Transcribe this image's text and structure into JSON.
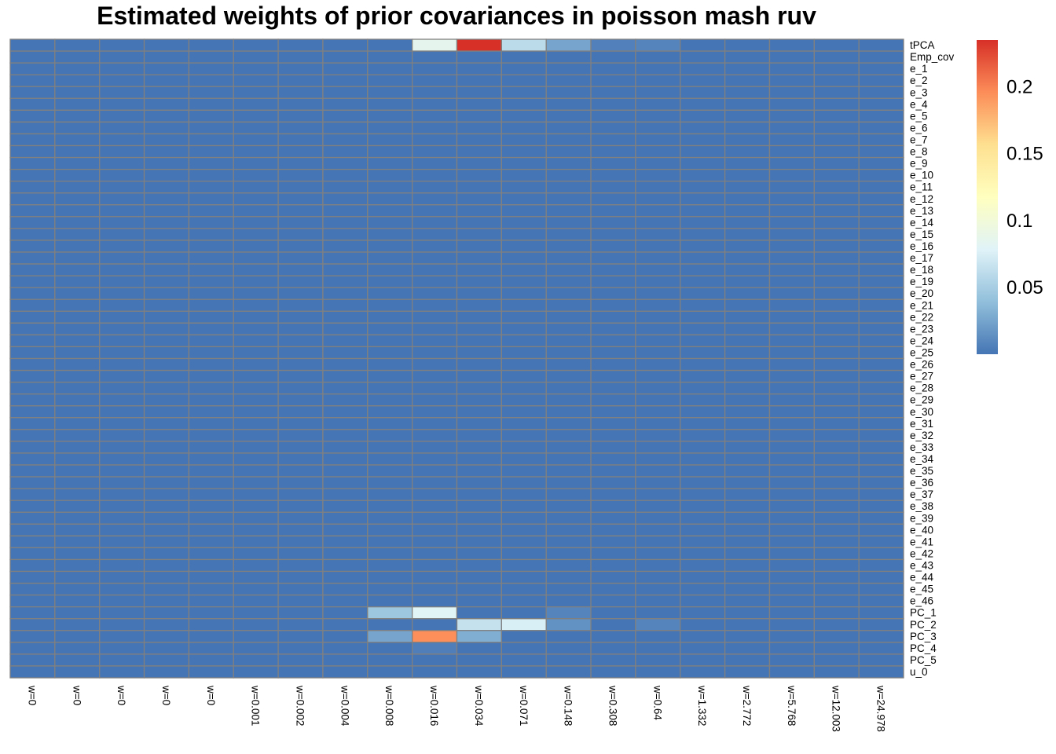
{
  "chart_data": {
    "type": "heatmap",
    "title": "Estimated weights of prior covariances in poisson mash ruv",
    "xlabel": "",
    "ylabel": "",
    "columns": [
      "w=0",
      "w=0",
      "w=0",
      "w=0",
      "w=0",
      "w=0.001",
      "w=0.002",
      "w=0.004",
      "w=0.008",
      "w=0.016",
      "w=0.034",
      "w=0.071",
      "w=0.148",
      "w=0.308",
      "w=0.64",
      "w=1.332",
      "w=2.772",
      "w=5.768",
      "w=12.003",
      "w=24.978"
    ],
    "rows": [
      "tPCA",
      "Emp_cov",
      "e_1",
      "e_2",
      "e_3",
      "e_4",
      "e_5",
      "e_6",
      "e_7",
      "e_8",
      "e_9",
      "e_10",
      "e_11",
      "e_12",
      "e_13",
      "e_14",
      "e_15",
      "e_16",
      "e_17",
      "e_18",
      "e_19",
      "e_20",
      "e_21",
      "e_22",
      "e_23",
      "e_24",
      "e_25",
      "e_26",
      "e_27",
      "e_28",
      "e_29",
      "e_30",
      "e_31",
      "e_32",
      "e_33",
      "e_34",
      "e_35",
      "e_36",
      "e_37",
      "e_38",
      "e_39",
      "e_40",
      "e_41",
      "e_42",
      "e_43",
      "e_44",
      "e_45",
      "e_46",
      "PC_1",
      "PC_2",
      "PC_3",
      "PC_4",
      "PC_5",
      "u_0"
    ],
    "default_value": 0,
    "nonzero_cells": [
      {
        "row": "tPCA",
        "col_index": 9,
        "value": 0.085
      },
      {
        "row": "tPCA",
        "col_index": 10,
        "value": 0.235
      },
      {
        "row": "tPCA",
        "col_index": 11,
        "value": 0.06
      },
      {
        "row": "tPCA",
        "col_index": 12,
        "value": 0.025
      },
      {
        "row": "tPCA",
        "col_index": 13,
        "value": 0.006
      },
      {
        "row": "tPCA",
        "col_index": 14,
        "value": 0.008
      },
      {
        "row": "PC_1",
        "col_index": 8,
        "value": 0.045
      },
      {
        "row": "PC_1",
        "col_index": 9,
        "value": 0.08
      },
      {
        "row": "PC_1",
        "col_index": 12,
        "value": 0.008
      },
      {
        "row": "PC_2",
        "col_index": 11,
        "value": 0.075
      },
      {
        "row": "PC_2",
        "col_index": 10,
        "value": 0.065
      },
      {
        "row": "PC_2",
        "col_index": 12,
        "value": 0.015
      },
      {
        "row": "PC_2",
        "col_index": 14,
        "value": 0.008
      },
      {
        "row": "PC_3",
        "col_index": 8,
        "value": 0.025
      },
      {
        "row": "PC_3",
        "col_index": 9,
        "value": 0.195
      },
      {
        "row": "PC_3",
        "col_index": 10,
        "value": 0.03
      },
      {
        "row": "PC_4",
        "col_index": 9,
        "value": 0.005
      }
    ],
    "color_scale": {
      "min": 0,
      "max": 0.235,
      "colors": [
        "#4575B4",
        "#91BFDB",
        "#E0F3F8",
        "#FFFFBF",
        "#FEE090",
        "#FC8D59",
        "#D73027"
      ],
      "ticks": [
        0.05,
        0.1,
        0.15,
        0.2
      ],
      "tick_labels": [
        "0.05",
        "0.1",
        "0.15",
        "0.2"
      ]
    },
    "cell_border_color": "#808080",
    "legend": "right"
  }
}
